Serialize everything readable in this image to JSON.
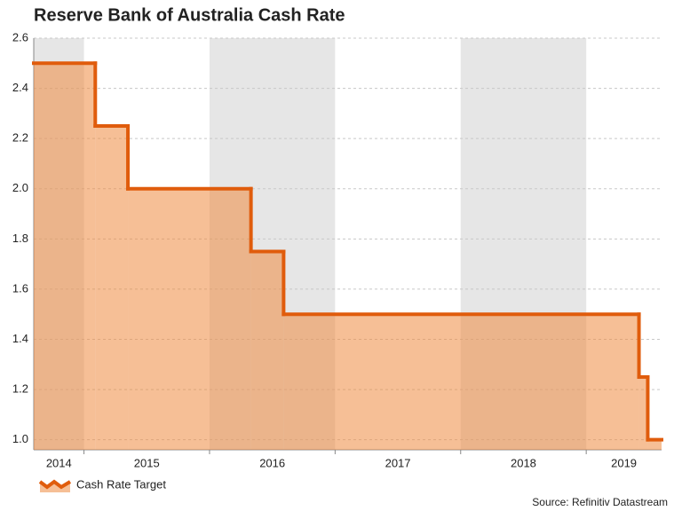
{
  "chart_data": {
    "type": "step-area",
    "title": "Reserve Bank of Australia Cash Rate",
    "source": "Source: Refinitiv Datastream",
    "x": [
      2014.6,
      2015.09,
      2015.35,
      2016.33,
      2016.59,
      2019.42,
      2019.49
    ],
    "series": [
      {
        "name": "Cash Rate Target",
        "color": "#e05c0c",
        "fill": "#ee8a40",
        "values": [
          2.5,
          2.25,
          2.0,
          1.75,
          1.5,
          1.25,
          1.0
        ]
      }
    ],
    "xlim": [
      2014.6,
      2019.6
    ],
    "xticks": [
      2015,
      2016,
      2017,
      2018,
      2019
    ],
    "year_bands": [
      2014,
      2015,
      2016,
      2017,
      2018,
      2019
    ],
    "band_color": "#e6e6e6",
    "ylim": [
      0.96,
      2.6
    ],
    "yticks": [
      {
        "value": 1.0,
        "label": "1.0"
      },
      1.2,
      1.4,
      1.6,
      1.8,
      {
        "value": 2.0,
        "label": "2.0"
      },
      2.2,
      2.4,
      2.6
    ],
    "grid": true
  }
}
